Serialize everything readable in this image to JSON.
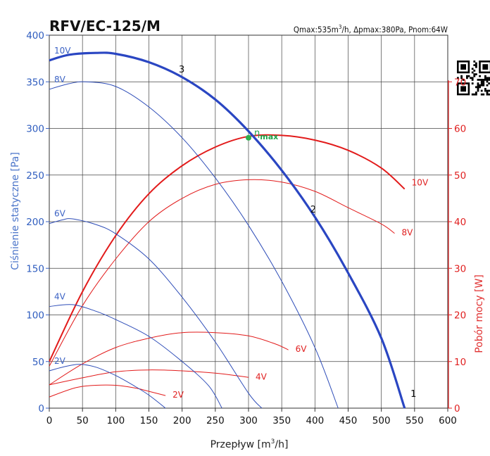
{
  "chart_data": {
    "type": "line",
    "title": "RFV/EC-125/M",
    "subtitle_parts": [
      "Qmax:535m",
      "3",
      "/h, Δpmax:380Pa, Pnom:64W"
    ],
    "xlabel_parts": [
      "Przepływ [m",
      "3",
      "/h]"
    ],
    "ylabel": "Ciśnienie statyczne [Pa]",
    "y2label": "Pobór mocy [W]",
    "xlim": [
      0,
      600
    ],
    "ylim": [
      0,
      400
    ],
    "y2lim": [
      0,
      80
    ],
    "xticks": [
      "0",
      "50",
      "100",
      "150",
      "200",
      "250",
      "300",
      "350",
      "400",
      "450",
      "500",
      "550",
      "600"
    ],
    "yticks": [
      "0",
      "50",
      "100",
      "150",
      "200",
      "250",
      "300",
      "350",
      "400"
    ],
    "y2ticks": [
      "0",
      "10",
      "20",
      "30",
      "40",
      "50",
      "60",
      "70"
    ],
    "grid": true,
    "pressure_series": [
      {
        "name": "10V",
        "points": [
          [
            0,
            373
          ],
          [
            30,
            379
          ],
          [
            70,
            381
          ],
          [
            100,
            380
          ],
          [
            150,
            371
          ],
          [
            200,
            355
          ],
          [
            250,
            331
          ],
          [
            300,
            297
          ],
          [
            350,
            255
          ],
          [
            400,
            205
          ],
          [
            450,
            145
          ],
          [
            500,
            75
          ],
          [
            535,
            0
          ]
        ]
      },
      {
        "name": "8V",
        "points": [
          [
            0,
            342
          ],
          [
            30,
            348
          ],
          [
            55,
            350
          ],
          [
            100,
            345
          ],
          [
            150,
            323
          ],
          [
            200,
            290
          ],
          [
            250,
            247
          ],
          [
            300,
            196
          ],
          [
            350,
            136
          ],
          [
            400,
            65
          ],
          [
            435,
            0
          ]
        ]
      },
      {
        "name": "6V",
        "points": [
          [
            0,
            198
          ],
          [
            20,
            202
          ],
          [
            35,
            203
          ],
          [
            70,
            197
          ],
          [
            100,
            187
          ],
          [
            150,
            160
          ],
          [
            200,
            119
          ],
          [
            250,
            71
          ],
          [
            300,
            16
          ],
          [
            320,
            0
          ]
        ]
      },
      {
        "name": "4V",
        "points": [
          [
            0,
            109
          ],
          [
            35,
            111
          ],
          [
            70,
            104
          ],
          [
            100,
            95
          ],
          [
            150,
            77
          ],
          [
            200,
            50
          ],
          [
            240,
            24
          ],
          [
            260,
            0
          ]
        ]
      },
      {
        "name": "2V",
        "points": [
          [
            0,
            40
          ],
          [
            20,
            44
          ],
          [
            45,
            47
          ],
          [
            70,
            44
          ],
          [
            100,
            35
          ],
          [
            130,
            23
          ],
          [
            150,
            14
          ],
          [
            175,
            0
          ]
        ]
      }
    ],
    "power_series": [
      {
        "name": "10V",
        "points": [
          [
            0,
            10
          ],
          [
            50,
            25
          ],
          [
            100,
            37
          ],
          [
            150,
            46
          ],
          [
            200,
            52
          ],
          [
            250,
            56
          ],
          [
            300,
            58.3
          ],
          [
            350,
            58.5
          ],
          [
            400,
            57.5
          ],
          [
            450,
            55.3
          ],
          [
            500,
            51.5
          ],
          [
            535,
            47
          ]
        ]
      },
      {
        "name": "8V",
        "points": [
          [
            0,
            9
          ],
          [
            50,
            22
          ],
          [
            100,
            32
          ],
          [
            150,
            40
          ],
          [
            200,
            45
          ],
          [
            250,
            48
          ],
          [
            300,
            49
          ],
          [
            350,
            48.5
          ],
          [
            400,
            46.5
          ],
          [
            450,
            43
          ],
          [
            500,
            39.5
          ],
          [
            520,
            37.5
          ]
        ]
      },
      {
        "name": "6V",
        "points": [
          [
            0,
            5
          ],
          [
            50,
            9.5
          ],
          [
            100,
            13
          ],
          [
            150,
            15
          ],
          [
            200,
            16.2
          ],
          [
            250,
            16.2
          ],
          [
            300,
            15.5
          ],
          [
            340,
            13.8
          ],
          [
            360,
            12.5
          ]
        ]
      },
      {
        "name": "4V",
        "points": [
          [
            0,
            5
          ],
          [
            50,
            6.5
          ],
          [
            100,
            7.8
          ],
          [
            150,
            8.2
          ],
          [
            200,
            8
          ],
          [
            250,
            7.5
          ],
          [
            280,
            7
          ],
          [
            300,
            6.6
          ]
        ]
      },
      {
        "name": "2V",
        "points": [
          [
            0,
            2.4
          ],
          [
            40,
            4.4
          ],
          [
            70,
            4.9
          ],
          [
            100,
            4.9
          ],
          [
            130,
            4.3
          ],
          [
            150,
            3.6
          ],
          [
            175,
            2.7
          ]
        ]
      }
    ],
    "markers": [
      {
        "label": "3",
        "x": 195,
        "y": 360
      },
      {
        "label": "2",
        "x": 393,
        "y": 210
      },
      {
        "label": "1",
        "x": 544,
        "y": 12
      }
    ],
    "eta_point": {
      "label": "η",
      "sub": "max",
      "x": 300,
      "y": 290
    },
    "colors": {
      "pressure": "#2e4db8",
      "pressure_main": "#2a46c2",
      "power": "#e21b1b",
      "eta": "#2fb04e",
      "grid": "#444444"
    }
  }
}
